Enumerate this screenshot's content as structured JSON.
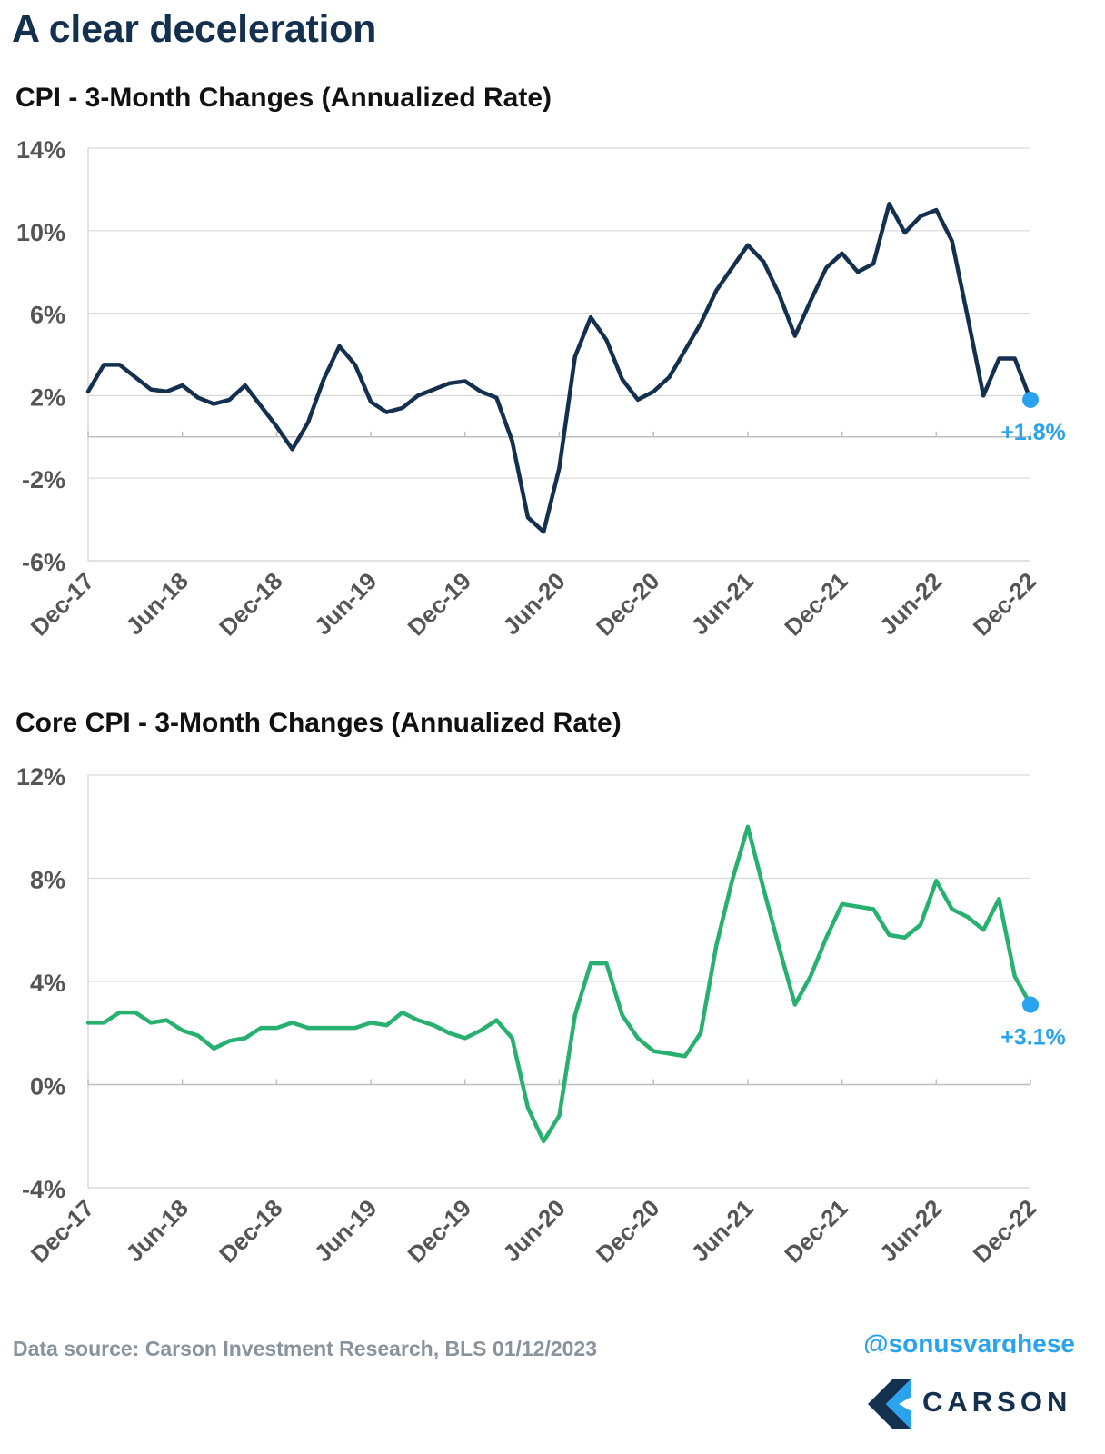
{
  "headline": "A clear deceleration",
  "footer": {
    "source": "Data source: Carson Investment Research, BLS   01/12/2023",
    "handle": "@sonusvarghese",
    "logo_text": "CARSON",
    "logo_icon": "carson-chevron-icon"
  },
  "colors": {
    "cpi_line": "#14304f",
    "core_line": "#27b070",
    "highlight": "#2aa3ef",
    "grid": "#d9d9d9"
  },
  "chart_data": [
    {
      "type": "line",
      "title": "CPI - 3-Month Changes (Annualized Rate)",
      "xlabel": "",
      "ylabel": "",
      "ylim": [
        -6,
        14
      ],
      "yticks": [
        -6,
        -2,
        2,
        6,
        10,
        14
      ],
      "ytick_labels": [
        "-6%",
        "-2%",
        "2%",
        "6%",
        "10%",
        "14%"
      ],
      "xtick_labels": [
        "Dec-17",
        "Jun-18",
        "Dec-18",
        "Jun-19",
        "Dec-19",
        "Jun-20",
        "Dec-20",
        "Jun-21",
        "Dec-21",
        "Jun-22",
        "Dec-22"
      ],
      "x_start": "2017-12",
      "grid": true,
      "series": [
        {
          "values": [
            2.2,
            3.5,
            3.5,
            2.9,
            2.3,
            2.2,
            2.5,
            1.9,
            1.6,
            1.8,
            2.5,
            1.5,
            0.5,
            -0.6,
            0.7,
            2.8,
            4.4,
            3.5,
            1.7,
            1.2,
            1.4,
            2.0,
            2.3,
            2.6,
            2.7,
            2.2,
            1.9,
            -0.2,
            -3.9,
            -4.6,
            -1.5,
            3.9,
            5.8,
            4.7,
            2.8,
            1.8,
            2.2,
            2.9,
            4.2,
            5.5,
            7.1,
            8.2,
            9.3,
            8.5,
            6.9,
            4.9,
            6.6,
            8.2,
            8.9,
            8.0,
            8.4,
            11.3,
            9.9,
            10.7,
            11.0,
            9.5,
            5.8,
            2.0,
            3.8,
            3.8,
            1.8
          ]
        }
      ],
      "end_label": "+1.8%"
    },
    {
      "type": "line",
      "title": "Core CPI - 3-Month Changes (Annualized Rate)",
      "xlabel": "",
      "ylabel": "",
      "ylim": [
        -4,
        12
      ],
      "yticks": [
        -4,
        0,
        4,
        8,
        12
      ],
      "ytick_labels": [
        "-4%",
        "0%",
        "4%",
        "8%",
        "12%"
      ],
      "xtick_labels": [
        "Dec-17",
        "Jun-18",
        "Dec-18",
        "Jun-19",
        "Dec-19",
        "Jun-20",
        "Dec-20",
        "Jun-21",
        "Dec-21",
        "Jun-22",
        "Dec-22"
      ],
      "x_start": "2017-12",
      "grid": true,
      "series": [
        {
          "values": [
            2.4,
            2.4,
            2.8,
            2.8,
            2.4,
            2.5,
            2.1,
            1.9,
            1.4,
            1.7,
            1.8,
            2.2,
            2.2,
            2.4,
            2.2,
            2.2,
            2.2,
            2.2,
            2.4,
            2.3,
            2.8,
            2.5,
            2.3,
            2.0,
            1.8,
            2.1,
            2.5,
            1.8,
            -0.9,
            -2.2,
            -1.2,
            2.7,
            4.7,
            4.7,
            2.7,
            1.8,
            1.3,
            1.2,
            1.1,
            2.0,
            5.4,
            7.9,
            10.0,
            7.6,
            5.3,
            3.1,
            4.2,
            5.7,
            7.0,
            6.9,
            6.8,
            5.8,
            5.7,
            6.2,
            7.9,
            6.8,
            6.5,
            6.0,
            7.2,
            4.2,
            3.1
          ]
        }
      ],
      "end_label": "+3.1%"
    }
  ]
}
